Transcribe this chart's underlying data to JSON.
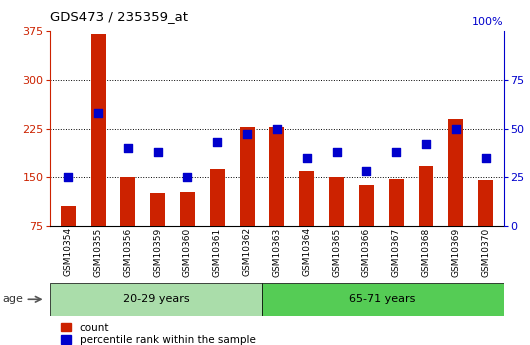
{
  "title": "GDS473 / 235359_at",
  "samples": [
    "GSM10354",
    "GSM10355",
    "GSM10356",
    "GSM10359",
    "GSM10360",
    "GSM10361",
    "GSM10362",
    "GSM10363",
    "GSM10364",
    "GSM10365",
    "GSM10366",
    "GSM10367",
    "GSM10368",
    "GSM10369",
    "GSM10370"
  ],
  "counts": [
    105,
    370,
    150,
    125,
    128,
    162,
    228,
    227,
    160,
    150,
    138,
    148,
    168,
    240,
    146
  ],
  "percentiles": [
    25,
    58,
    40,
    38,
    25,
    43,
    47,
    50,
    35,
    38,
    28,
    38,
    42,
    50,
    35
  ],
  "group1_label": "20-29 years",
  "group2_label": "65-71 years",
  "group1_count": 7,
  "group2_count": 8,
  "ylim_left": [
    75,
    375
  ],
  "ylim_right": [
    0,
    100
  ],
  "yticks_left": [
    75,
    150,
    225,
    300,
    375
  ],
  "yticks_right": [
    0,
    25,
    50,
    75
  ],
  "bar_color": "#CC2200",
  "dot_color": "#0000CC",
  "bg_color_group1": "#AADDAA",
  "bg_color_group2": "#55CC55",
  "legend_count_label": "count",
  "legend_pct_label": "percentile rank within the sample",
  "bar_width": 0.5,
  "dot_size": 40,
  "grid_lines": [
    150,
    225,
    300
  ],
  "bar_bottom": 75
}
